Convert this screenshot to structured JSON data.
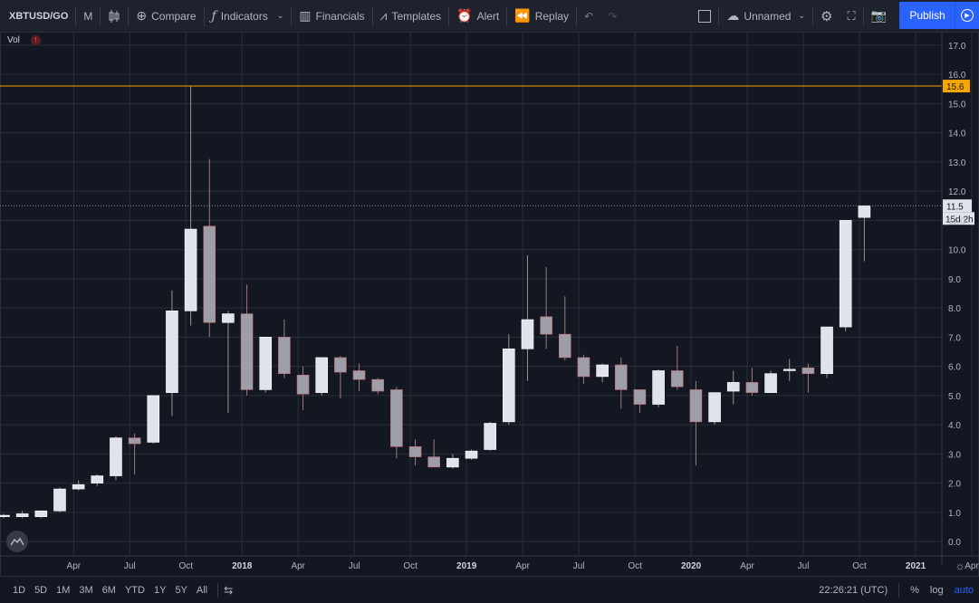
{
  "toolbar": {
    "symbol": "XBTUSD/GO",
    "interval": "M",
    "compare": "Compare",
    "indicators": "Indicators",
    "financials": "Financials",
    "templates": "Templates",
    "alert": "Alert",
    "replay": "Replay",
    "layout_name": "Unnamed",
    "publish": "Publish"
  },
  "pane": {
    "vol_label": "Vol",
    "warn_icon": "!"
  },
  "price_scale": {
    "ticks": [
      "17.0",
      "16.0",
      "15.0",
      "14.0",
      "13.0",
      "12.0",
      "11.0",
      "10.0",
      "9.0",
      "8.0",
      "7.0",
      "6.0",
      "5.0",
      "4.0",
      "3.0",
      "2.0",
      "1.0",
      "0.0"
    ],
    "line_label": "15.6",
    "last_price": "11.5",
    "countdown": "15d 2h"
  },
  "time_scale": {
    "labels": [
      "Apr",
      "Jul",
      "Oct",
      "2018",
      "Apr",
      "Jul",
      "Oct",
      "2019",
      "Apr",
      "Jul",
      "Oct",
      "2020",
      "Apr",
      "Jul",
      "Oct",
      "2021",
      "Apr"
    ],
    "bold": [
      "2018",
      "2019",
      "2020",
      "2021"
    ]
  },
  "bottom": {
    "ranges": [
      "1D",
      "5D",
      "1M",
      "3M",
      "6M",
      "YTD",
      "1Y",
      "5Y",
      "All"
    ],
    "clock": "22:26:21 (UTC)",
    "percent": "%",
    "log": "log",
    "auto": "auto"
  },
  "colors": {
    "bg": "#131722",
    "up": "#e0e3eb",
    "down": "#9e9ea8",
    "accent": "#2962ff",
    "line": "#f7a600"
  },
  "chart_data": {
    "type": "candlestick",
    "ylim": [
      -0.4,
      17.4
    ],
    "horizontal_line": 15.6,
    "last_price": 11.5,
    "candles": [
      {
        "o": 0.85,
        "h": 0.95,
        "l": 0.8,
        "c": 0.9
      },
      {
        "o": 0.85,
        "h": 1.05,
        "l": 0.8,
        "c": 0.95
      },
      {
        "o": 0.85,
        "h": 1.05,
        "l": 0.8,
        "c": 1.05
      },
      {
        "o": 1.05,
        "h": 1.85,
        "l": 1.0,
        "c": 1.8
      },
      {
        "o": 1.8,
        "h": 2.1,
        "l": 1.75,
        "c": 1.95
      },
      {
        "o": 2.0,
        "h": 2.3,
        "l": 1.9,
        "c": 2.25
      },
      {
        "o": 2.25,
        "h": 3.6,
        "l": 2.1,
        "c": 3.55
      },
      {
        "o": 3.55,
        "h": 3.7,
        "l": 2.3,
        "c": 3.35
      },
      {
        "o": 3.4,
        "h": 5.0,
        "l": 3.35,
        "c": 5.0
      },
      {
        "o": 5.1,
        "h": 8.6,
        "l": 4.3,
        "c": 7.9
      },
      {
        "o": 7.9,
        "h": 15.6,
        "l": 7.4,
        "c": 10.7
      },
      {
        "o": 10.8,
        "h": 13.1,
        "l": 7.0,
        "c": 7.5
      },
      {
        "o": 7.5,
        "h": 7.9,
        "l": 4.4,
        "c": 7.8
      },
      {
        "o": 7.8,
        "h": 8.8,
        "l": 5.0,
        "c": 5.2
      },
      {
        "o": 5.2,
        "h": 7.0,
        "l": 5.1,
        "c": 7.0
      },
      {
        "o": 7.0,
        "h": 7.6,
        "l": 5.6,
        "c": 5.75
      },
      {
        "o": 5.7,
        "h": 6.0,
        "l": 4.5,
        "c": 5.05
      },
      {
        "o": 5.1,
        "h": 6.3,
        "l": 5.0,
        "c": 6.3
      },
      {
        "o": 6.3,
        "h": 6.35,
        "l": 4.9,
        "c": 5.8
      },
      {
        "o": 5.85,
        "h": 6.1,
        "l": 5.15,
        "c": 5.55
      },
      {
        "o": 5.55,
        "h": 5.6,
        "l": 5.05,
        "c": 5.15
      },
      {
        "o": 5.2,
        "h": 5.3,
        "l": 2.85,
        "c": 3.25
      },
      {
        "o": 3.25,
        "h": 3.5,
        "l": 2.6,
        "c": 2.9
      },
      {
        "o": 2.9,
        "h": 3.5,
        "l": 2.55,
        "c": 2.55
      },
      {
        "o": 2.55,
        "h": 3.0,
        "l": 2.5,
        "c": 2.85
      },
      {
        "o": 2.85,
        "h": 3.15,
        "l": 2.8,
        "c": 3.1
      },
      {
        "o": 3.15,
        "h": 4.1,
        "l": 3.1,
        "c": 4.05
      },
      {
        "o": 4.1,
        "h": 7.1,
        "l": 4.0,
        "c": 6.6
      },
      {
        "o": 6.6,
        "h": 9.8,
        "l": 5.5,
        "c": 7.6
      },
      {
        "o": 7.7,
        "h": 9.4,
        "l": 6.6,
        "c": 7.1
      },
      {
        "o": 7.1,
        "h": 8.4,
        "l": 6.2,
        "c": 6.3
      },
      {
        "o": 6.3,
        "h": 6.4,
        "l": 5.4,
        "c": 5.65
      },
      {
        "o": 5.65,
        "h": 6.1,
        "l": 5.45,
        "c": 6.05
      },
      {
        "o": 6.05,
        "h": 6.3,
        "l": 4.55,
        "c": 5.2
      },
      {
        "o": 5.2,
        "h": 5.2,
        "l": 4.4,
        "c": 4.7
      },
      {
        "o": 4.7,
        "h": 5.9,
        "l": 4.6,
        "c": 5.85
      },
      {
        "o": 5.85,
        "h": 6.7,
        "l": 5.2,
        "c": 5.3
      },
      {
        "o": 5.2,
        "h": 5.5,
        "l": 2.6,
        "c": 4.1
      },
      {
        "o": 4.1,
        "h": 5.1,
        "l": 4.0,
        "c": 5.1
      },
      {
        "o": 5.15,
        "h": 5.85,
        "l": 4.7,
        "c": 5.45
      },
      {
        "o": 5.45,
        "h": 5.95,
        "l": 5.0,
        "c": 5.1
      },
      {
        "o": 5.1,
        "h": 5.85,
        "l": 5.1,
        "c": 5.75
      },
      {
        "o": 5.85,
        "h": 6.25,
        "l": 5.5,
        "c": 5.9
      },
      {
        "o": 5.95,
        "h": 6.1,
        "l": 5.1,
        "c": 5.75
      },
      {
        "o": 5.75,
        "h": 7.35,
        "l": 5.6,
        "c": 7.35
      },
      {
        "o": 7.35,
        "h": 11.0,
        "l": 7.2,
        "c": 11.0
      },
      {
        "o": 11.1,
        "h": 11.5,
        "l": 9.6,
        "c": 11.5
      }
    ]
  }
}
